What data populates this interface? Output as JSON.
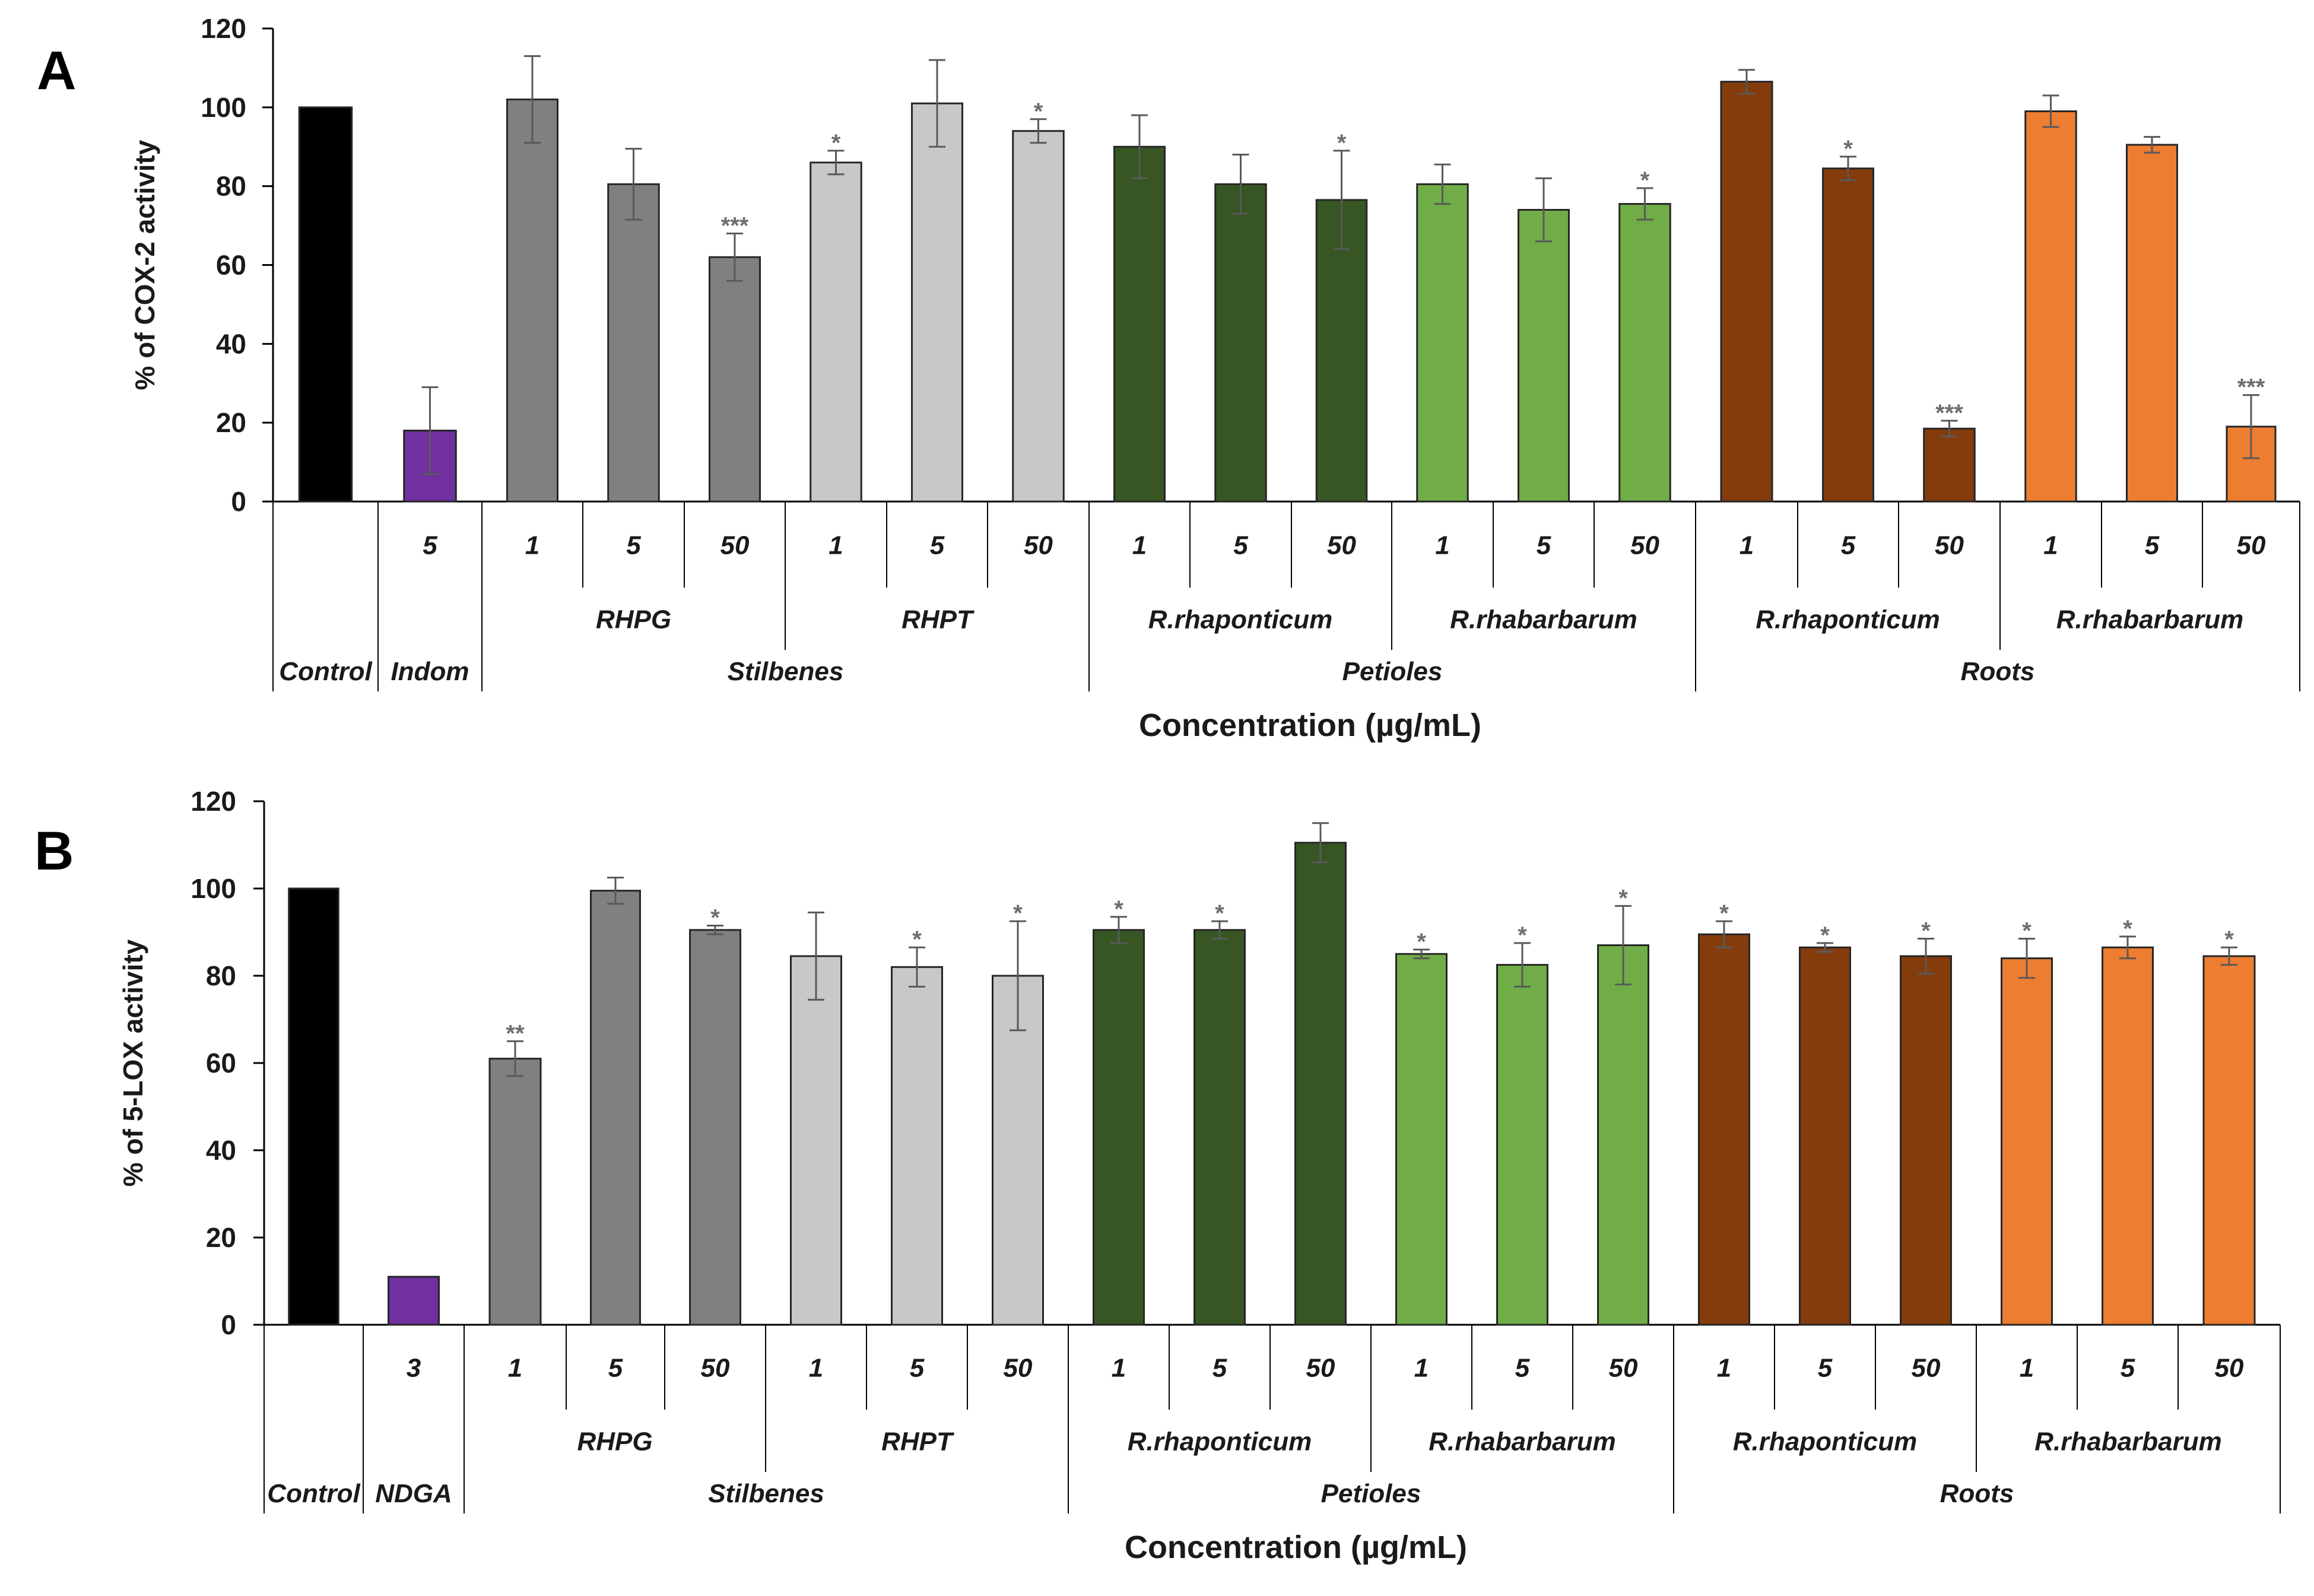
{
  "chart_data": [
    {
      "type": "bar",
      "panel_label": "A",
      "ylabel": "% of COX-2 activity",
      "xlabel": "Concentration (µg/mL)",
      "ylim": [
        0,
        120
      ],
      "yticks": [
        "0",
        "20",
        "40",
        "60",
        "80",
        "100",
        "120"
      ],
      "bars": [
        {
          "label": "",
          "value": 100,
          "err": 0,
          "sig": "",
          "color": "#000000"
        },
        {
          "label": "5",
          "value": 18,
          "err": 11,
          "sig": "",
          "color": "#7030a0"
        },
        {
          "label": "1",
          "value": 102,
          "err": 11,
          "sig": "",
          "color": "#808080"
        },
        {
          "label": "5",
          "value": 80.5,
          "err": 9,
          "sig": "",
          "color": "#808080"
        },
        {
          "label": "50",
          "value": 62,
          "err": 6,
          "sig": "***",
          "color": "#808080"
        },
        {
          "label": "1",
          "value": 86,
          "err": 3,
          "sig": "*",
          "color": "#c8c8c8"
        },
        {
          "label": "5",
          "value": 101,
          "err": 11,
          "sig": "",
          "color": "#c8c8c8"
        },
        {
          "label": "50",
          "value": 94,
          "err": 3,
          "sig": "*",
          "color": "#c8c8c8"
        },
        {
          "label": "1",
          "value": 90,
          "err": 8,
          "sig": "",
          "color": "#375623"
        },
        {
          "label": "5",
          "value": 80.5,
          "err": 7.5,
          "sig": "",
          "color": "#375623"
        },
        {
          "label": "50",
          "value": 76.5,
          "err": 12.5,
          "sig": "*",
          "color": "#375623"
        },
        {
          "label": "1",
          "value": 80.5,
          "err": 5,
          "sig": "",
          "color": "#70ad47"
        },
        {
          "label": "5",
          "value": 74,
          "err": 8,
          "sig": "",
          "color": "#70ad47"
        },
        {
          "label": "50",
          "value": 75.5,
          "err": 4,
          "sig": "*",
          "color": "#70ad47"
        },
        {
          "label": "1",
          "value": 106.5,
          "err": 3,
          "sig": "",
          "color": "#843c0c"
        },
        {
          "label": "5",
          "value": 84.5,
          "err": 3,
          "sig": "*",
          "color": "#843c0c"
        },
        {
          "label": "50",
          "value": 18.5,
          "err": 2,
          "sig": "***",
          "color": "#843c0c"
        },
        {
          "label": "1",
          "value": 99,
          "err": 4,
          "sig": "",
          "color": "#ed7d31"
        },
        {
          "label": "5",
          "value": 90.5,
          "err": 2,
          "sig": "",
          "color": "#ed7d31"
        },
        {
          "label": "50",
          "value": 19,
          "err": 8,
          "sig": "***",
          "color": "#ed7d31"
        }
      ],
      "groups": [
        {
          "label": "RHPG",
          "start": 2,
          "end": 4,
          "level": 1
        },
        {
          "label": "RHPT",
          "start": 5,
          "end": 7,
          "level": 1
        },
        {
          "label": "R.rhaponticum",
          "start": 8,
          "end": 10,
          "level": 1
        },
        {
          "label": "R.rhabarbarum",
          "start": 11,
          "end": 13,
          "level": 1
        },
        {
          "label": "R.rhaponticum",
          "start": 14,
          "end": 16,
          "level": 1
        },
        {
          "label": "R.rhabarbarum",
          "start": 17,
          "end": 19,
          "level": 1
        },
        {
          "label": "Control",
          "start": 0,
          "end": 0,
          "level": 2
        },
        {
          "label": "Indom",
          "start": 1,
          "end": 1,
          "level": 2
        },
        {
          "label": "Stilbenes",
          "start": 2,
          "end": 7,
          "level": 2
        },
        {
          "label": "Petioles",
          "start": 8,
          "end": 13,
          "level": 2
        },
        {
          "label": "Roots",
          "start": 14,
          "end": 19,
          "level": 2
        }
      ]
    },
    {
      "type": "bar",
      "panel_label": "B",
      "ylabel": "% of 5-LOX activity",
      "xlabel": "Concentration (µg/mL)",
      "ylim": [
        0,
        120
      ],
      "yticks": [
        "0",
        "20",
        "40",
        "60",
        "80",
        "100",
        "120"
      ],
      "bars": [
        {
          "label": "",
          "value": 100,
          "err": 0,
          "sig": "",
          "color": "#000000"
        },
        {
          "label": "3",
          "value": 11,
          "err": 0,
          "sig": "",
          "color": "#7030a0"
        },
        {
          "label": "1",
          "value": 61,
          "err": 4,
          "sig": "**",
          "color": "#808080"
        },
        {
          "label": "5",
          "value": 99.5,
          "err": 3,
          "sig": "",
          "color": "#808080"
        },
        {
          "label": "50",
          "value": 90.5,
          "err": 1,
          "sig": "*",
          "color": "#808080"
        },
        {
          "label": "1",
          "value": 84.5,
          "err": 10,
          "sig": "",
          "color": "#c8c8c8"
        },
        {
          "label": "5",
          "value": 82,
          "err": 4.5,
          "sig": "*",
          "color": "#c8c8c8"
        },
        {
          "label": "50",
          "value": 80,
          "err": 12.5,
          "sig": "*",
          "color": "#c8c8c8"
        },
        {
          "label": "1",
          "value": 90.5,
          "err": 3,
          "sig": "*",
          "color": "#375623"
        },
        {
          "label": "5",
          "value": 90.5,
          "err": 2,
          "sig": "*",
          "color": "#375623"
        },
        {
          "label": "50",
          "value": 110.5,
          "err": 4.5,
          "sig": "",
          "color": "#375623"
        },
        {
          "label": "1",
          "value": 85,
          "err": 1,
          "sig": "*",
          "color": "#70ad47"
        },
        {
          "label": "5",
          "value": 82.5,
          "err": 5,
          "sig": "*",
          "color": "#70ad47"
        },
        {
          "label": "50",
          "value": 87,
          "err": 9,
          "sig": "*",
          "color": "#70ad47"
        },
        {
          "label": "1",
          "value": 89.5,
          "err": 3,
          "sig": "*",
          "color": "#843c0c"
        },
        {
          "label": "5",
          "value": 86.5,
          "err": 1,
          "sig": "*",
          "color": "#843c0c"
        },
        {
          "label": "50",
          "value": 84.5,
          "err": 4,
          "sig": "*",
          "color": "#843c0c"
        },
        {
          "label": "1",
          "value": 84,
          "err": 4.5,
          "sig": "*",
          "color": "#ed7d31"
        },
        {
          "label": "5",
          "value": 86.5,
          "err": 2.5,
          "sig": "*",
          "color": "#ed7d31"
        },
        {
          "label": "50",
          "value": 84.5,
          "err": 2,
          "sig": "*",
          "color": "#ed7d31"
        }
      ],
      "groups": [
        {
          "label": "RHPG",
          "start": 2,
          "end": 4,
          "level": 1
        },
        {
          "label": "RHPT",
          "start": 5,
          "end": 7,
          "level": 1
        },
        {
          "label": "R.rhaponticum",
          "start": 8,
          "end": 10,
          "level": 1
        },
        {
          "label": "R.rhabarbarum",
          "start": 11,
          "end": 13,
          "level": 1
        },
        {
          "label": "R.rhaponticum",
          "start": 14,
          "end": 16,
          "level": 1
        },
        {
          "label": "R.rhabarbarum",
          "start": 17,
          "end": 19,
          "level": 1
        },
        {
          "label": "Control",
          "start": 0,
          "end": 0,
          "level": 2
        },
        {
          "label": "NDGA",
          "start": 1,
          "end": 1,
          "level": 2
        },
        {
          "label": "Stilbenes",
          "start": 2,
          "end": 7,
          "level": 2
        },
        {
          "label": "Petioles",
          "start": 8,
          "end": 13,
          "level": 2
        },
        {
          "label": "Roots",
          "start": 14,
          "end": 19,
          "level": 2
        }
      ]
    }
  ]
}
